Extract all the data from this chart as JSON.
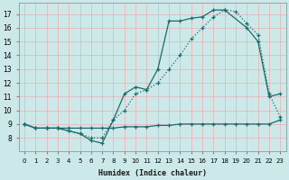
{
  "xlabel": "Humidex (Indice chaleur)",
  "bg_color": "#cce8e8",
  "grid_color": "#aacccc",
  "line_color": "#1a6b6b",
  "xlim": [
    -0.5,
    23.5
  ],
  "ylim": [
    7,
    17.8
  ],
  "xticks": [
    0,
    1,
    2,
    3,
    4,
    5,
    6,
    7,
    8,
    9,
    10,
    11,
    12,
    13,
    14,
    15,
    16,
    17,
    18,
    19,
    20,
    21,
    22,
    23
  ],
  "yticks": [
    8,
    9,
    10,
    11,
    12,
    13,
    14,
    15,
    16,
    17
  ],
  "ytick_labels": [
    "8",
    "9",
    "10",
    "11",
    "12",
    "13",
    "14",
    "15",
    "16",
    "17"
  ],
  "extra_yticks": [
    7
  ],
  "curve_flat_x": [
    0,
    1,
    2,
    3,
    4,
    5,
    6,
    7,
    8,
    9,
    10,
    11,
    12,
    13,
    14,
    15,
    16,
    17,
    18,
    19,
    20,
    21,
    22,
    23
  ],
  "curve_flat_y": [
    9.0,
    8.7,
    8.7,
    8.7,
    8.7,
    8.7,
    8.7,
    8.7,
    8.7,
    8.8,
    8.8,
    8.8,
    8.9,
    8.9,
    9.0,
    9.0,
    9.0,
    9.0,
    9.0,
    9.0,
    9.0,
    9.0,
    9.0,
    9.3
  ],
  "curve_dotted_x": [
    0,
    1,
    2,
    3,
    4,
    5,
    6,
    7,
    8,
    9,
    10,
    11,
    12,
    13,
    14,
    15,
    16,
    17,
    18,
    19,
    20,
    21,
    22,
    23
  ],
  "curve_dotted_y": [
    9.0,
    8.7,
    8.7,
    8.7,
    8.5,
    8.3,
    8.0,
    8.0,
    9.3,
    10.0,
    11.2,
    11.5,
    12.0,
    13.0,
    14.0,
    15.2,
    16.0,
    16.8,
    17.3,
    17.2,
    16.3,
    15.5,
    11.2,
    9.5
  ],
  "curve_solid_x": [
    0,
    1,
    2,
    3,
    4,
    5,
    6,
    7,
    8,
    9,
    10,
    11,
    12,
    13,
    14,
    15,
    16,
    17,
    18,
    20,
    21,
    22,
    23
  ],
  "curve_solid_y": [
    9.0,
    8.7,
    8.7,
    8.7,
    8.5,
    8.3,
    7.8,
    7.6,
    9.3,
    11.2,
    11.7,
    11.5,
    13.0,
    16.5,
    16.5,
    16.7,
    16.8,
    17.3,
    17.3,
    16.0,
    15.0,
    11.0,
    11.2
  ]
}
